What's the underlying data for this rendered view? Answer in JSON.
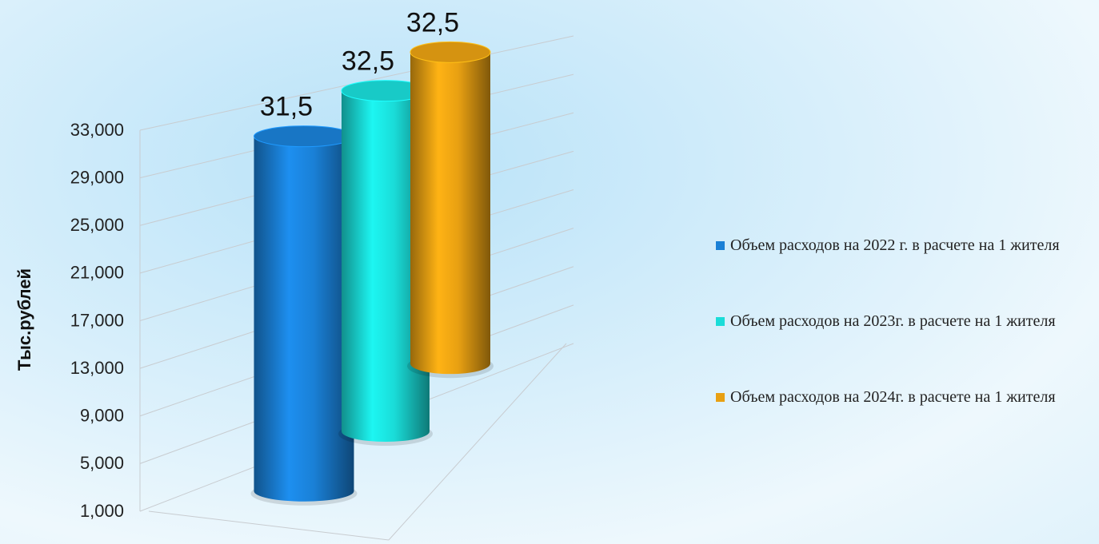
{
  "chart_data": {
    "type": "bar",
    "y_label": "Тыс.рублей",
    "ylim": [
      1000,
      33000
    ],
    "yticks": [
      {
        "value": 1000,
        "label": "1,000"
      },
      {
        "value": 5000,
        "label": "5,000"
      },
      {
        "value": 9000,
        "label": "9,000"
      },
      {
        "value": 13000,
        "label": "13,000"
      },
      {
        "value": 17000,
        "label": "17,000"
      },
      {
        "value": 21000,
        "label": "21,000"
      },
      {
        "value": 25000,
        "label": "25,000"
      },
      {
        "value": 29000,
        "label": "29,000"
      },
      {
        "value": 33000,
        "label": "33,000"
      }
    ],
    "grid": true,
    "legend": "right",
    "series": [
      {
        "name": "Объем расходов на 2022 г. в расчете на 1 жителя",
        "color": "#1a80d6",
        "values": [
          31500
        ],
        "value_labels": [
          "31,5"
        ]
      },
      {
        "name": "Объем расходов на 2023г. в расчете на 1 жителя",
        "color": "#1adcd8",
        "values": [
          32500
        ],
        "value_labels": [
          "32,5"
        ]
      },
      {
        "name": "Объем расходов на 2024г. в расчете на 1 жителя",
        "color": "#e8a012",
        "values": [
          32500
        ],
        "value_labels": [
          "32,5"
        ]
      }
    ]
  }
}
